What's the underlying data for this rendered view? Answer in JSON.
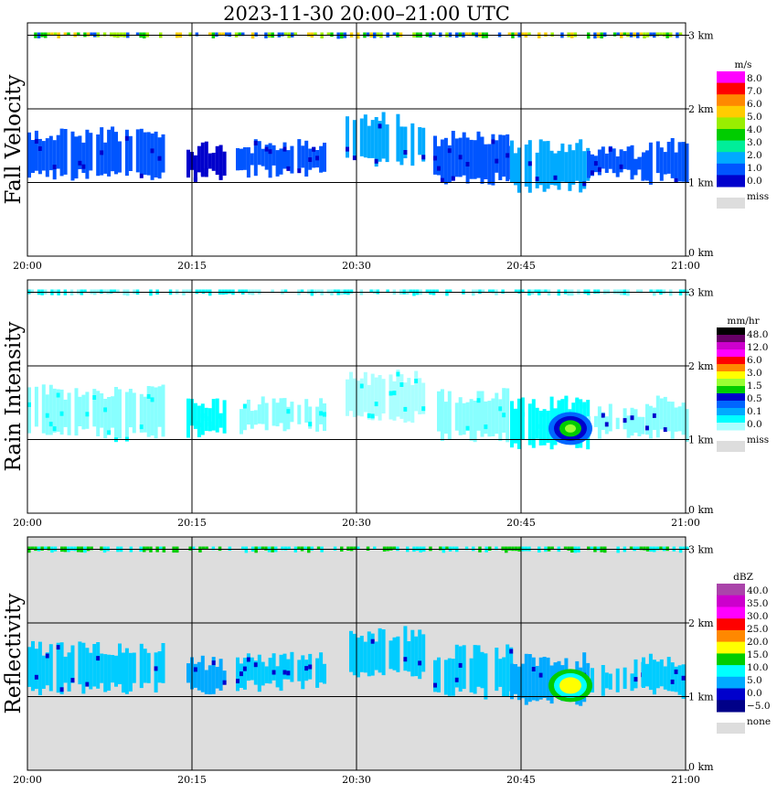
{
  "title": "2023-11-30   20:00–21:00 UTC",
  "x_ticks": [
    "20:00",
    "20:15",
    "20:30",
    "20:45",
    "21:00"
  ],
  "height_ticks": [
    "0 km",
    "1 km",
    "2 km",
    "3 km"
  ],
  "chart_data": [
    {
      "type": "heatmap",
      "ylabel": "Fall Velocity",
      "x_range": [
        "20:00",
        "21:00"
      ],
      "y_range_km": [
        0,
        3.2
      ],
      "grid": true,
      "background": "#ffffff",
      "colorbar": {
        "unit": "m/s",
        "levels": [
          "8.0",
          "7.0",
          "6.0",
          "5.0",
          "4.0",
          "3.0",
          "2.0",
          "1.0",
          "0.0"
        ],
        "colors": [
          "#ff00ff",
          "#ff0000",
          "#ff8800",
          "#ffcc00",
          "#99ee00",
          "#00cc00",
          "#00ee99",
          "#00aaff",
          "#0055ff",
          "#0000cc"
        ],
        "missing_label": "miss",
        "missing_color": "#dddddd"
      },
      "echo_layers": [
        {
          "start_min": 0,
          "end_min": 12.5,
          "base_km": 1.1,
          "top_km": 1.65,
          "color": "#0055ff"
        },
        {
          "start_min": 14.5,
          "end_min": 18,
          "base_km": 1.1,
          "top_km": 1.45,
          "color": "#0000cc"
        },
        {
          "start_min": 19,
          "end_min": 27,
          "base_km": 1.15,
          "top_km": 1.5,
          "color": "#0055ff"
        },
        {
          "start_min": 29,
          "end_min": 36,
          "base_km": 1.3,
          "top_km": 1.85,
          "color": "#00aaff"
        },
        {
          "start_min": 37,
          "end_min": 44,
          "base_km": 1.05,
          "top_km": 1.6,
          "color": "#0055ff"
        },
        {
          "start_min": 44,
          "end_min": 51,
          "base_km": 0.95,
          "top_km": 1.5,
          "color": "#00aaff"
        },
        {
          "start_min": 51,
          "end_min": 56,
          "base_km": 1.1,
          "top_km": 1.4,
          "color": "#0055ff"
        },
        {
          "start_min": 56,
          "end_min": 60,
          "base_km": 1.05,
          "top_km": 1.5,
          "color": "#0055ff"
        }
      ],
      "top_strip": {
        "height_km": 3.0,
        "colors": [
          "#99ee00",
          "#ffcc00",
          "#00cc00",
          "#0055ff"
        ]
      }
    },
    {
      "type": "heatmap",
      "ylabel": "Rain Intensity",
      "x_range": [
        "20:00",
        "21:00"
      ],
      "y_range_km": [
        0,
        3.2
      ],
      "grid": true,
      "background": "#ffffff",
      "colorbar": {
        "unit": "mm/hr",
        "levels": [
          "48.0",
          "12.0",
          "6.0",
          "3.0",
          "1.5",
          "0.5",
          "0.1",
          "0.0"
        ],
        "colors": [
          "#000000",
          "#660066",
          "#cc00cc",
          "#ff00ff",
          "#ff0000",
          "#ff8800",
          "#ffff00",
          "#99ff33",
          "#00cc00",
          "#0000cc",
          "#0066ff",
          "#00aaff",
          "#00ffff",
          "#aaffff"
        ],
        "missing_label": "miss",
        "missing_color": "#dddddd"
      },
      "echo_layers": [
        {
          "start_min": 0,
          "end_min": 12.5,
          "base_km": 1.1,
          "top_km": 1.65,
          "color": "#88ffff"
        },
        {
          "start_min": 14.5,
          "end_min": 18,
          "base_km": 1.1,
          "top_km": 1.45,
          "color": "#00ffff"
        },
        {
          "start_min": 19,
          "end_min": 27,
          "base_km": 1.15,
          "top_km": 1.5,
          "color": "#88ffff"
        },
        {
          "start_min": 29,
          "end_min": 36,
          "base_km": 1.3,
          "top_km": 1.85,
          "color": "#aaffff"
        },
        {
          "start_min": 37,
          "end_min": 44,
          "base_km": 1.05,
          "top_km": 1.6,
          "color": "#88ffff"
        },
        {
          "start_min": 44,
          "end_min": 51,
          "base_km": 0.95,
          "top_km": 1.5,
          "color": "#00ffff"
        },
        {
          "start_min": 51,
          "end_min": 56,
          "base_km": 1.1,
          "top_km": 1.4,
          "color": "#88ffff"
        },
        {
          "start_min": 56,
          "end_min": 60,
          "base_km": 1.05,
          "top_km": 1.5,
          "color": "#88ffff"
        }
      ],
      "hotspot": {
        "minute": 49.5,
        "km": 1.15,
        "colors": [
          "#0066ff",
          "#0000cc",
          "#00cc00",
          "#99ff33"
        ]
      },
      "top_strip": {
        "height_km": 3.0,
        "colors": [
          "#88ffff",
          "#00ffff"
        ]
      }
    },
    {
      "type": "heatmap",
      "ylabel": "Reflectivity",
      "x_range": [
        "20:00",
        "21:00"
      ],
      "y_range_km": [
        0,
        3.2
      ],
      "grid": true,
      "background": "#dddddd",
      "colorbar": {
        "unit": "dBZ",
        "levels": [
          "40.0",
          "35.0",
          "30.0",
          "25.0",
          "20.0",
          "15.0",
          "10.0",
          "5.0",
          "0.0",
          "−5.0"
        ],
        "colors": [
          "#aa44aa",
          "#cc00cc",
          "#ff00ff",
          "#ff0000",
          "#ff8800",
          "#ffff00",
          "#00cc00",
          "#00ffff",
          "#00aaff",
          "#0000cc",
          "#000088"
        ],
        "missing_label": "none",
        "missing_color": "#dddddd"
      },
      "echo_layers": [
        {
          "start_min": 0,
          "end_min": 12.5,
          "base_km": 1.1,
          "top_km": 1.65,
          "color": "#00ccff"
        },
        {
          "start_min": 14.5,
          "end_min": 18,
          "base_km": 1.1,
          "top_km": 1.45,
          "color": "#00aaff"
        },
        {
          "start_min": 19,
          "end_min": 27,
          "base_km": 1.15,
          "top_km": 1.5,
          "color": "#00ccff"
        },
        {
          "start_min": 29,
          "end_min": 36,
          "base_km": 1.3,
          "top_km": 1.85,
          "color": "#00ccff"
        },
        {
          "start_min": 37,
          "end_min": 44,
          "base_km": 1.05,
          "top_km": 1.6,
          "color": "#00ccff"
        },
        {
          "start_min": 44,
          "end_min": 51,
          "base_km": 0.95,
          "top_km": 1.5,
          "color": "#00aaff"
        },
        {
          "start_min": 51,
          "end_min": 56,
          "base_km": 1.1,
          "top_km": 1.4,
          "color": "#00ccff"
        },
        {
          "start_min": 56,
          "end_min": 60,
          "base_km": 1.05,
          "top_km": 1.5,
          "color": "#00ccff"
        }
      ],
      "hotspot": {
        "minute": 49.5,
        "km": 1.15,
        "colors": [
          "#00cc00",
          "#00ffff",
          "#ffff00"
        ]
      },
      "top_strip": {
        "height_km": 3.0,
        "colors": [
          "#00cc00",
          "#00ffff"
        ]
      }
    }
  ]
}
